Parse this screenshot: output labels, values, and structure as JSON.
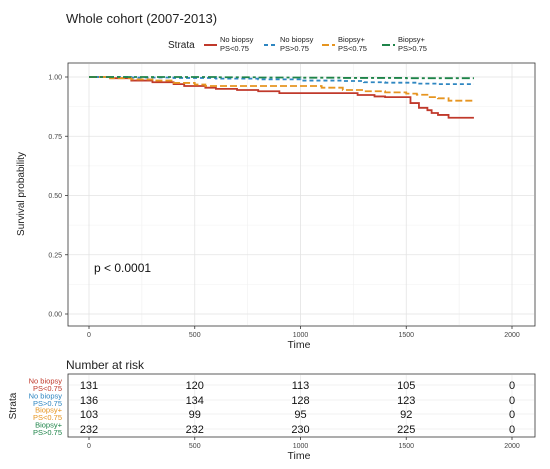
{
  "chart_data": [
    {
      "type": "line",
      "subtype": "kaplan-meier-step",
      "title": "Whole cohort (2007-2013)",
      "xlabel": "Time",
      "ylabel": "Survival probability",
      "xlim": [
        0,
        2000
      ],
      "ylim": [
        0,
        1
      ],
      "x_ticks": [
        "0",
        "500",
        "1000",
        "1500",
        "2000"
      ],
      "y_ticks": [
        "0.00",
        "0.25",
        "0.50",
        "0.75",
        "1.00"
      ],
      "grid": true,
      "legend": {
        "title": "Strata",
        "placement": "top",
        "entries": [
          {
            "line1": "No biopsy",
            "line2": "PS<0.75"
          },
          {
            "line1": "No biopsy",
            "line2": "PS>0.75"
          },
          {
            "line1": "Biopsy+",
            "line2": "PS<0.75"
          },
          {
            "line1": "Biopsy+",
            "line2": "PS>0.75"
          }
        ]
      },
      "annotation": "p < 0.0001",
      "series": [
        {
          "color": "#C0392B",
          "dash": "solid",
          "points": [
            [
              0,
              1.0
            ],
            [
              100,
              0.995
            ],
            [
              200,
              0.985
            ],
            [
              300,
              0.978
            ],
            [
              400,
              0.97
            ],
            [
              450,
              0.962
            ],
            [
              550,
              0.955
            ],
            [
              600,
              0.95
            ],
            [
              700,
              0.945
            ],
            [
              800,
              0.94
            ],
            [
              900,
              0.932
            ],
            [
              1000,
              0.932
            ],
            [
              1100,
              0.932
            ],
            [
              1200,
              0.932
            ],
            [
              1270,
              0.924
            ],
            [
              1350,
              0.918
            ],
            [
              1400,
              0.915
            ],
            [
              1500,
              0.915
            ],
            [
              1520,
              0.89
            ],
            [
              1560,
              0.87
            ],
            [
              1600,
              0.86
            ],
            [
              1620,
              0.848
            ],
            [
              1650,
              0.84
            ],
            [
              1700,
              0.828
            ],
            [
              1820,
              0.828
            ]
          ]
        },
        {
          "color": "#2E86C1",
          "dash": "dash",
          "points": [
            [
              0,
              1.0
            ],
            [
              100,
              1.0
            ],
            [
              200,
              0.998
            ],
            [
              400,
              0.996
            ],
            [
              600,
              0.993
            ],
            [
              800,
              0.99
            ],
            [
              1000,
              0.985
            ],
            [
              1200,
              0.983
            ],
            [
              1300,
              0.978
            ],
            [
              1400,
              0.976
            ],
            [
              1500,
              0.976
            ],
            [
              1550,
              0.972
            ],
            [
              1650,
              0.97
            ],
            [
              1820,
              0.97
            ]
          ]
        },
        {
          "color": "#E69520",
          "dash": "longdash",
          "points": [
            [
              0,
              1.0
            ],
            [
              100,
              0.995
            ],
            [
              200,
              0.99
            ],
            [
              300,
              0.985
            ],
            [
              400,
              0.975
            ],
            [
              500,
              0.968
            ],
            [
              550,
              0.962
            ],
            [
              700,
              0.962
            ],
            [
              900,
              0.962
            ],
            [
              1000,
              0.962
            ],
            [
              1100,
              0.955
            ],
            [
              1200,
              0.945
            ],
            [
              1300,
              0.94
            ],
            [
              1400,
              0.935
            ],
            [
              1500,
              0.93
            ],
            [
              1550,
              0.925
            ],
            [
              1600,
              0.915
            ],
            [
              1650,
              0.91
            ],
            [
              1700,
              0.9
            ],
            [
              1820,
              0.9
            ]
          ]
        },
        {
          "color": "#1E8449",
          "dash": "twodash",
          "points": [
            [
              0,
              1.0
            ],
            [
              200,
              1.0
            ],
            [
              400,
              1.0
            ],
            [
              600,
              0.999
            ],
            [
              800,
              0.998
            ],
            [
              1000,
              0.997
            ],
            [
              1200,
              0.996
            ],
            [
              1400,
              0.996
            ],
            [
              1500,
              0.995
            ],
            [
              1600,
              0.995
            ],
            [
              1820,
              0.995
            ]
          ]
        }
      ]
    },
    {
      "type": "table",
      "title": "Number at risk",
      "xlabel": "Time",
      "ylabel": "Strata",
      "xlim": [
        0,
        2000
      ],
      "x_ticks": [
        "0",
        "500",
        "1000",
        "1500",
        "2000"
      ],
      "time_points": [
        0,
        500,
        1000,
        1500,
        2000
      ],
      "rows": [
        {
          "line1": "No biopsy",
          "line2": "PS<0.75",
          "color": "#C0392B",
          "values": [
            "131",
            "120",
            "113",
            "105",
            "0"
          ]
        },
        {
          "line1": "No biopsy",
          "line2": "PS>0.75",
          "color": "#2E86C1",
          "values": [
            "136",
            "134",
            "128",
            "123",
            "0"
          ]
        },
        {
          "line1": "Biopsy+",
          "line2": "PS<0.75",
          "color": "#E69520",
          "values": [
            "103",
            "99",
            "95",
            "92",
            "0"
          ]
        },
        {
          "line1": "Biopsy+",
          "line2": "PS>0.75",
          "color": "#1E8449",
          "values": [
            "232",
            "232",
            "230",
            "225",
            "0"
          ]
        }
      ]
    }
  ]
}
